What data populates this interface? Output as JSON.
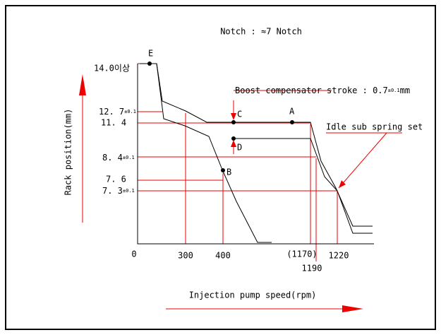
{
  "title": "Notch : ≈7 Notch",
  "y_axis_label": "Rack position(mm)",
  "x_axis_label": "Injection pump speed(rpm)",
  "y_labels": [
    {
      "text": "14.0이상"
    },
    {
      "text": "12. 7",
      "tol": "±0.1"
    },
    {
      "text": "11. 4"
    },
    {
      "text": "8. 4",
      "tol": "±0.1"
    },
    {
      "text": "7. 6"
    },
    {
      "text": "7. 3",
      "tol": "±0.1"
    }
  ],
  "x_labels": [
    "0",
    "300",
    "400",
    "(1170)",
    "1190",
    "1220"
  ],
  "points": [
    "E",
    "C",
    "A",
    "D",
    "B"
  ],
  "annotations": {
    "boost": "Boost compensator stroke : 0.7",
    "boost_tol": "±0.1",
    "boost_unit": "mm",
    "idle": "Idle sub spring set"
  }
}
